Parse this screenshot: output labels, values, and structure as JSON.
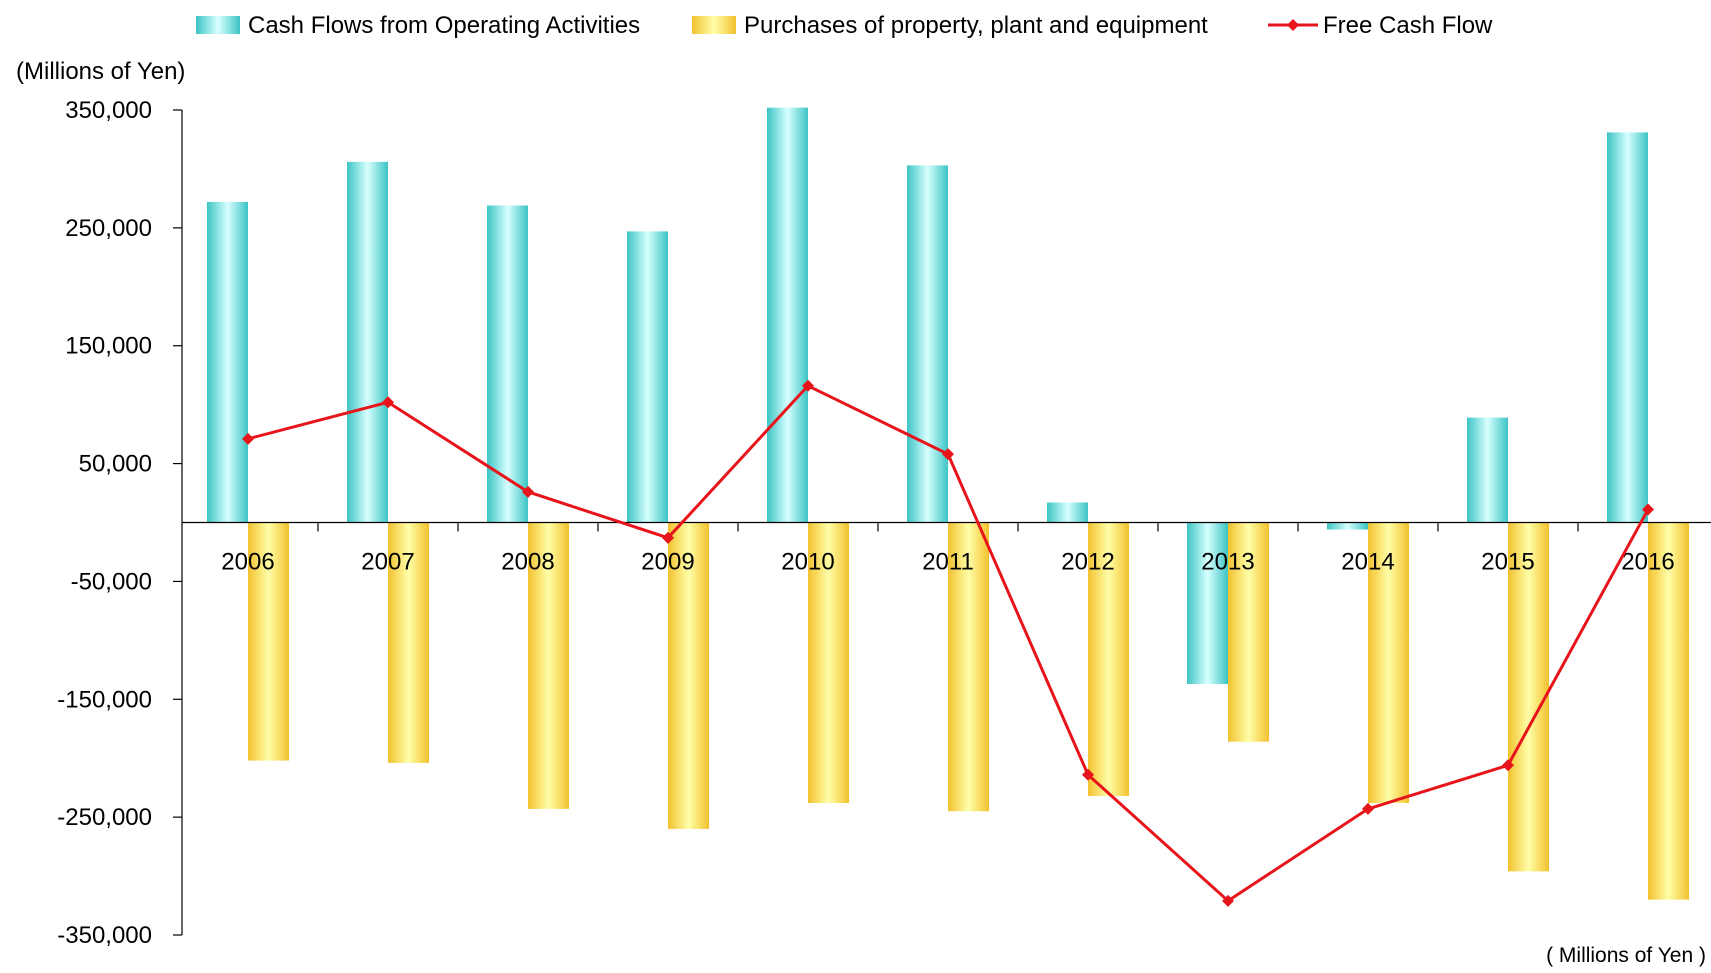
{
  "chart_data": {
    "type": "bar",
    "legend": {
      "placement": "top",
      "entries": [
        "Cash Flows from Operating Activities",
        "Purchases of property, plant and equipment",
        "Free Cash Flow"
      ]
    },
    "ylabel": "(Millions of Yen)",
    "unit_note": "( Millions of Yen )",
    "ylim": [
      -350000,
      350000
    ],
    "yticks": [
      350000,
      250000,
      150000,
      50000,
      -50000,
      -150000,
      -250000,
      -350000
    ],
    "ytick_labels": [
      "350,000",
      "250,000",
      "150,000",
      "50,000",
      "-50,000",
      "-150,000",
      "-250,000",
      "-350,000"
    ],
    "grid": false,
    "categories": [
      "2006",
      "2007",
      "2008",
      "2009",
      "2010",
      "2011",
      "2012",
      "2013",
      "2014",
      "2015",
      "2016"
    ],
    "series": [
      {
        "name": "Cash Flows from Operating Activities",
        "type": "bar",
        "color": "#5CD6D6",
        "values": [
          272000,
          306000,
          269000,
          247000,
          352000,
          303000,
          17000,
          -137000,
          -6000,
          89000,
          331000
        ]
      },
      {
        "name": "Purchases of property, plant and equipment",
        "type": "bar",
        "color": "#F5D040",
        "values": [
          -202000,
          -204000,
          -243000,
          -260000,
          -238000,
          -245000,
          -232000,
          -186000,
          -238000,
          -296000,
          -320000
        ]
      },
      {
        "name": "Free Cash Flow",
        "type": "line",
        "color": "#E8141B",
        "values": [
          71000,
          102000,
          26000,
          -13000,
          116000,
          58000,
          -214000,
          -321000,
          -243000,
          -206000,
          11000
        ]
      }
    ]
  }
}
